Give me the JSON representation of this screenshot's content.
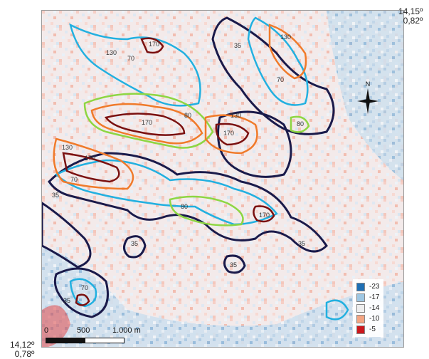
{
  "coords": {
    "top_right_lat": "14,15º",
    "top_right_lon": "0,82º",
    "bottom_left_lat": "14,12º",
    "bottom_left_lon": "0,78º"
  },
  "legend": [
    {
      "label": "-23",
      "color": "#1f6fb4"
    },
    {
      "label": "-17",
      "color": "#9ec7e3"
    },
    {
      "label": "-14",
      "color": "#eeeeee"
    },
    {
      "label": "-10",
      "color": "#f4a582"
    },
    {
      "label": "-5",
      "color": "#cb181d"
    }
  ],
  "scale": {
    "label_0": "0",
    "label_500": "500",
    "label_1000": "1.000 m"
  },
  "north": {
    "label": "N"
  },
  "contour_colors": {
    "35": "#1a1a4a",
    "70": "#22b0e0",
    "80": "#8ed643",
    "130": "#f07a2a",
    "170": "#7a1010"
  },
  "contour_labels": [
    "35",
    "70",
    "80",
    "130",
    "170"
  ]
}
